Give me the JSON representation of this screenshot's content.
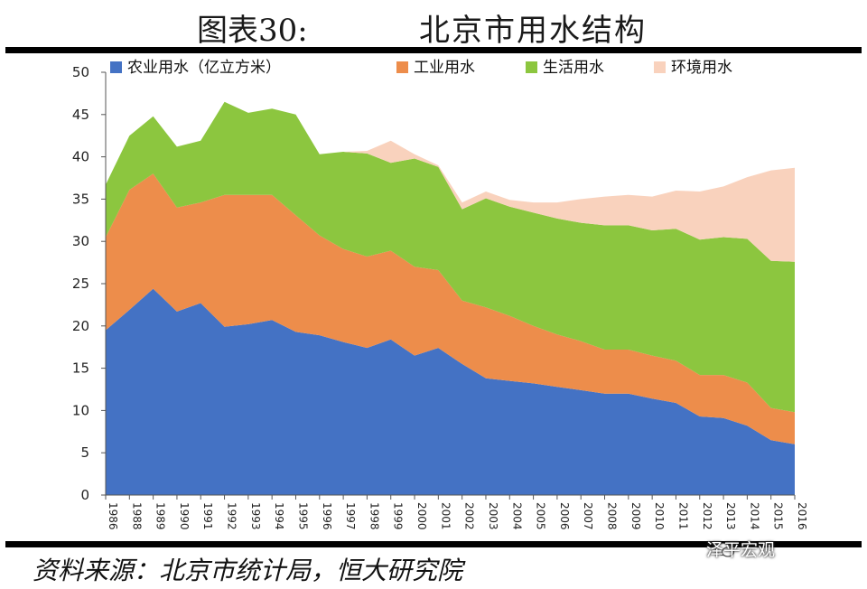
{
  "header": {
    "figure_label": "图表30:",
    "title": "北京市用水结构"
  },
  "footer": {
    "source": "资料来源：北京市统计局，恒大研究院",
    "watermark": "泽平宏观"
  },
  "chart_data": {
    "type": "area",
    "stacked": true,
    "title": "北京市用水结构",
    "ylim": [
      0,
      50
    ],
    "yticks": [
      0,
      5,
      10,
      15,
      20,
      25,
      30,
      35,
      40,
      45,
      50
    ],
    "grid": false,
    "legend_position": "top",
    "categories": [
      "1986",
      "1988",
      "1989",
      "1990",
      "1991",
      "1992",
      "1993",
      "1994",
      "1995",
      "1996",
      "1997",
      "1998",
      "1999",
      "2000",
      "2001",
      "2002",
      "2003",
      "2004",
      "2005",
      "2006",
      "2007",
      "2008",
      "2009",
      "2010",
      "2011",
      "2012",
      "2013",
      "2014",
      "2015",
      "2016"
    ],
    "series": [
      {
        "name": "农业用水（亿立方米）",
        "color": "#4472C4",
        "values": [
          19.5,
          21.9,
          24.4,
          21.7,
          22.7,
          19.9,
          20.2,
          20.7,
          19.3,
          18.9,
          18.1,
          17.4,
          18.4,
          16.5,
          17.4,
          15.5,
          13.8,
          13.5,
          13.2,
          12.8,
          12.4,
          12.0,
          12.0,
          11.4,
          10.9,
          9.3,
          9.1,
          8.2,
          6.5,
          6.0
        ]
      },
      {
        "name": "工业用水",
        "color": "#ED8D4B",
        "values": [
          11.0,
          14.2,
          13.6,
          12.3,
          11.9,
          15.6,
          15.3,
          14.8,
          13.8,
          11.8,
          11.0,
          10.8,
          10.5,
          10.5,
          9.2,
          7.5,
          8.4,
          7.7,
          6.8,
          6.2,
          5.8,
          5.2,
          5.2,
          5.1,
          5.0,
          4.9,
          5.1,
          5.1,
          3.8,
          3.8
        ]
      },
      {
        "name": "生活用水",
        "color": "#8CC63F",
        "values": [
          6.2,
          6.4,
          6.8,
          7.2,
          7.3,
          11.0,
          9.7,
          10.2,
          11.9,
          9.6,
          11.5,
          12.2,
          10.4,
          12.8,
          12.2,
          10.8,
          12.9,
          12.9,
          13.4,
          13.7,
          14.0,
          14.7,
          14.7,
          14.8,
          15.6,
          16.0,
          16.3,
          17.0,
          17.4,
          17.8
        ]
      },
      {
        "name": "环境用水",
        "color": "#F9D2BD",
        "values": [
          0,
          0,
          0,
          0,
          0,
          0,
          0,
          0,
          0,
          0,
          0,
          0.3,
          2.6,
          0.5,
          0.2,
          0.8,
          0.8,
          0.8,
          1.2,
          1.9,
          2.8,
          3.4,
          3.6,
          4.0,
          4.5,
          5.7,
          6.0,
          7.3,
          10.7,
          11.1
        ]
      }
    ]
  }
}
